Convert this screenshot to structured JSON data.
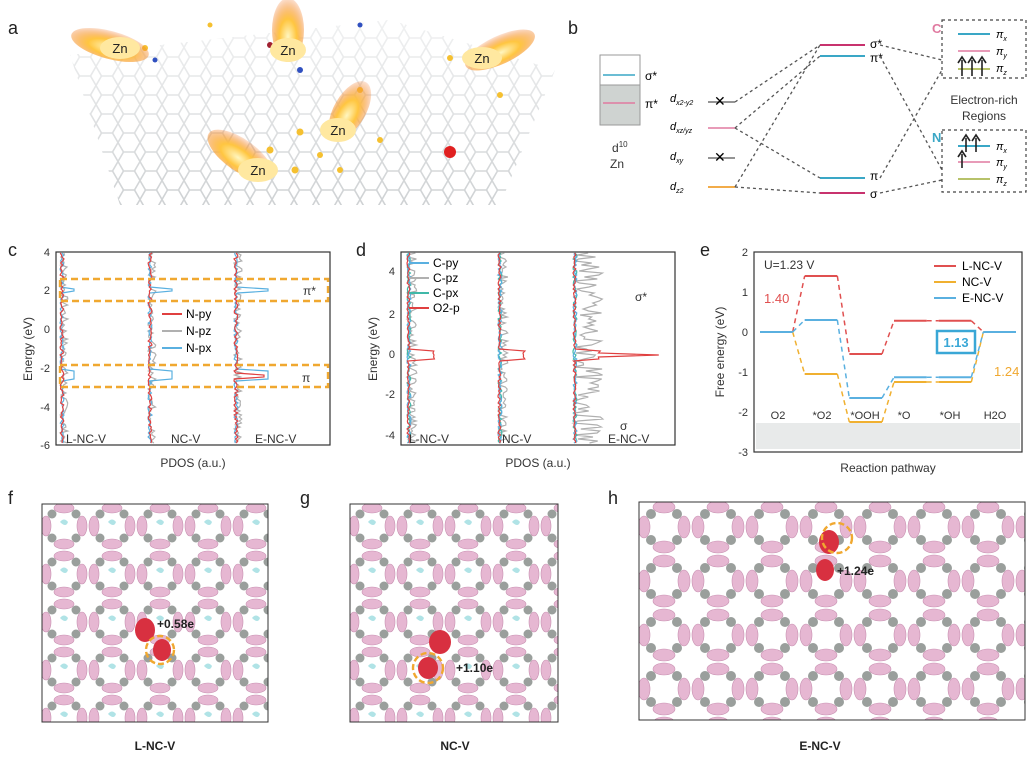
{
  "panel_letters": [
    "a",
    "b",
    "c",
    "d",
    "e",
    "f",
    "g",
    "h"
  ],
  "panel_a": {
    "flame_labels": [
      "Zn",
      "Zn",
      "Zn",
      "Zn",
      "Zn"
    ]
  },
  "panel_b": {
    "box_labels": {
      "sigma_star": "σ*",
      "pi_star": "π*",
      "d_config": "d",
      "d_sup": "10",
      "element": "Zn"
    },
    "d_orbitals": [
      "d",
      "x2-y2",
      "d",
      "xz/yz",
      "d",
      "xy",
      "d",
      "z2"
    ],
    "mo_labels": {
      "sigma_star": "σ*",
      "pi_star": "π*",
      "pi": "π",
      "sigma": "σ"
    },
    "region_c_letter": "C",
    "region_n_letter": "N",
    "region_caption_line1": "Electron-rich",
    "region_caption_line2": "Regions",
    "pi_labels": [
      "π",
      "x",
      "π",
      "y",
      "π",
      "z"
    ],
    "colors": {
      "teal": "#3aa7c6",
      "pink": "#e07aa0",
      "magenta": "#c8326e",
      "olive": "#b7c26a",
      "orange": "#f0a030",
      "grey": "#cfd3d1"
    }
  },
  "panel_c": {
    "yaxis_label": "Energy (eV)",
    "xaxis_label": "PDOS (a.u.)",
    "yticks": [
      "4",
      "2",
      "0",
      "-2",
      "-4",
      "-6"
    ],
    "legend": [
      "N-py",
      "N-pz",
      "N-px"
    ],
    "group_labels": [
      "L-NC-V",
      "NC-V",
      "E-NC-V"
    ],
    "annotations": {
      "pi_star": "π*",
      "pi": "π"
    },
    "colors": {
      "py": "#e04040",
      "pz": "#b0b0b0",
      "px": "#5ab0e0",
      "box": "#f0a830"
    }
  },
  "panel_d": {
    "yaxis_label": "Energy (eV)",
    "xaxis_label": "PDOS (a.u.)",
    "yticks": [
      "4",
      "2",
      "0",
      "-2",
      "-4"
    ],
    "legend": [
      "C-py",
      "C-pz",
      "C-px",
      "O2-p"
    ],
    "group_labels": [
      "L-NC-V",
      "NC-V",
      "E-NC-V"
    ],
    "annotations": {
      "sigma_star": "σ*",
      "sigma": "σ"
    },
    "colors": {
      "py": "#5ab0e0",
      "pz": "#b0b0b0",
      "px": "#3fb8a8",
      "o2p": "#e04040"
    }
  },
  "panel_e": {
    "condition": "U=1.23 V",
    "yaxis_label": "Free energy (eV)",
    "xaxis_label": "Reaction pathway",
    "yticks": [
      "2",
      "1",
      "0",
      "-1",
      "-2",
      "-3"
    ],
    "legend": [
      "L-NC-V",
      "NC-V",
      "E-NC-V"
    ],
    "steps": [
      "O2",
      "*O2",
      "*OOH",
      "*O",
      "*OH",
      "H2O"
    ],
    "value_labels": [
      "1.40",
      "1.13",
      "1.24"
    ],
    "colors": {
      "lncv": "#e05050",
      "ncv": "#f0b030",
      "encv": "#5ab0e0"
    }
  },
  "chart_data": {
    "type": "line",
    "title": "",
    "xlabel": "Reaction pathway",
    "ylabel": "Free energy (eV)",
    "ylim": [
      -3,
      2
    ],
    "categories": [
      "O2",
      "*O2",
      "*OOH",
      "*O",
      "*OH",
      "H2O"
    ],
    "series": [
      {
        "name": "L-NC-V",
        "values": [
          0,
          1.4,
          -0.55,
          0.28,
          0.28,
          0
        ]
      },
      {
        "name": "NC-V",
        "values": [
          0,
          -1.05,
          -2.25,
          -1.25,
          -1.25,
          0
        ]
      },
      {
        "name": "E-NC-V",
        "values": [
          0,
          0.3,
          -1.65,
          -1.13,
          -1.13,
          0
        ]
      }
    ],
    "legend": "top-right"
  },
  "panel_f": {
    "charge_label": "+0.58e",
    "caption": "L-NC-V"
  },
  "panel_g": {
    "charge_label": "+1.10e",
    "caption": "NC-V"
  },
  "panel_h": {
    "charge_label": "+1.24e",
    "caption": "E-NC-V"
  }
}
